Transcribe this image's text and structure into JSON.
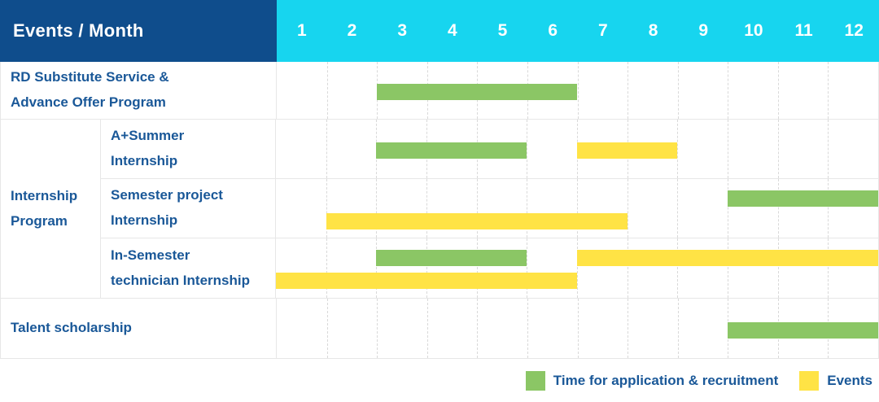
{
  "header": {
    "label": "Events / Month",
    "months": [
      "1",
      "2",
      "3",
      "4",
      "5",
      "6",
      "7",
      "8",
      "9",
      "10",
      "11",
      "12"
    ]
  },
  "internship_group": {
    "label": "Internship Program",
    "label_lines": [
      "Internship",
      "Program"
    ]
  },
  "legend_items": [
    {
      "label": "Time for application & recruitment",
      "color": "green"
    },
    {
      "label": "Events",
      "color": "yellow"
    }
  ],
  "colors": {
    "header_bg": "#0f4d8c",
    "months_bg": "#17d5ef",
    "header_text": "#ffffff",
    "green": "#8bc665",
    "yellow": "#ffe345",
    "label_text": "#1a5898",
    "border": "#e7e7e7",
    "gridline": "#d9d9d9"
  },
  "chart_data": {
    "type": "bar",
    "subtype": "gantt",
    "title": "Events / Month",
    "x_axis": {
      "label": "Month",
      "ticks": [
        1,
        2,
        3,
        4,
        5,
        6,
        7,
        8,
        9,
        10,
        11,
        12
      ],
      "range": [
        1,
        12
      ]
    },
    "legend": [
      "Time for application & recruitment",
      "Events"
    ],
    "legend_position": "bottom-right",
    "grid": true,
    "rows": [
      {
        "label": "RD Substitute Service & Advance Offer Program",
        "label_lines": [
          "RD Substitute Service &",
          "Advance Offer Program"
        ],
        "group": null,
        "bars": [
          {
            "series": "Time for application & recruitment",
            "color": "green",
            "start_month": 3,
            "end_month": 6,
            "lane": "single"
          }
        ]
      },
      {
        "label": "A+Summer Internship",
        "label_lines": [
          "A+Summer",
          "Internship"
        ],
        "group": "Internship Program",
        "bars": [
          {
            "series": "Time for application & recruitment",
            "color": "green",
            "start_month": 3,
            "end_month": 5,
            "lane": "single"
          },
          {
            "series": "Events",
            "color": "yellow",
            "start_month": 7,
            "end_month": 8,
            "lane": "single"
          }
        ]
      },
      {
        "label": "Semester project Internship",
        "label_lines": [
          "Semester project",
          "Internship"
        ],
        "group": "Internship Program",
        "bars": [
          {
            "series": "Time for application & recruitment",
            "color": "green",
            "start_month": 10,
            "end_month": 12,
            "lane": "top"
          },
          {
            "series": "Events",
            "color": "yellow",
            "start_month": 2,
            "end_month": 7,
            "lane": "bottom"
          }
        ]
      },
      {
        "label": "In-Semester technician Internship",
        "label_lines": [
          "In-Semester",
          "technician Internship"
        ],
        "group": "Internship Program",
        "bars": [
          {
            "series": "Time for application & recruitment",
            "color": "green",
            "start_month": 3,
            "end_month": 5,
            "lane": "top"
          },
          {
            "series": "Events",
            "color": "yellow",
            "start_month": 7,
            "end_month": 12,
            "lane": "top"
          },
          {
            "series": "Events",
            "color": "yellow",
            "start_month": 1,
            "end_month": 6,
            "lane": "bottom"
          }
        ]
      },
      {
        "label": "Talent scholarship",
        "label_lines": [
          "Talent scholarship"
        ],
        "group": null,
        "bars": [
          {
            "series": "Time for application & recruitment",
            "color": "green",
            "start_month": 10,
            "end_month": 12,
            "lane": "single"
          }
        ]
      }
    ]
  }
}
